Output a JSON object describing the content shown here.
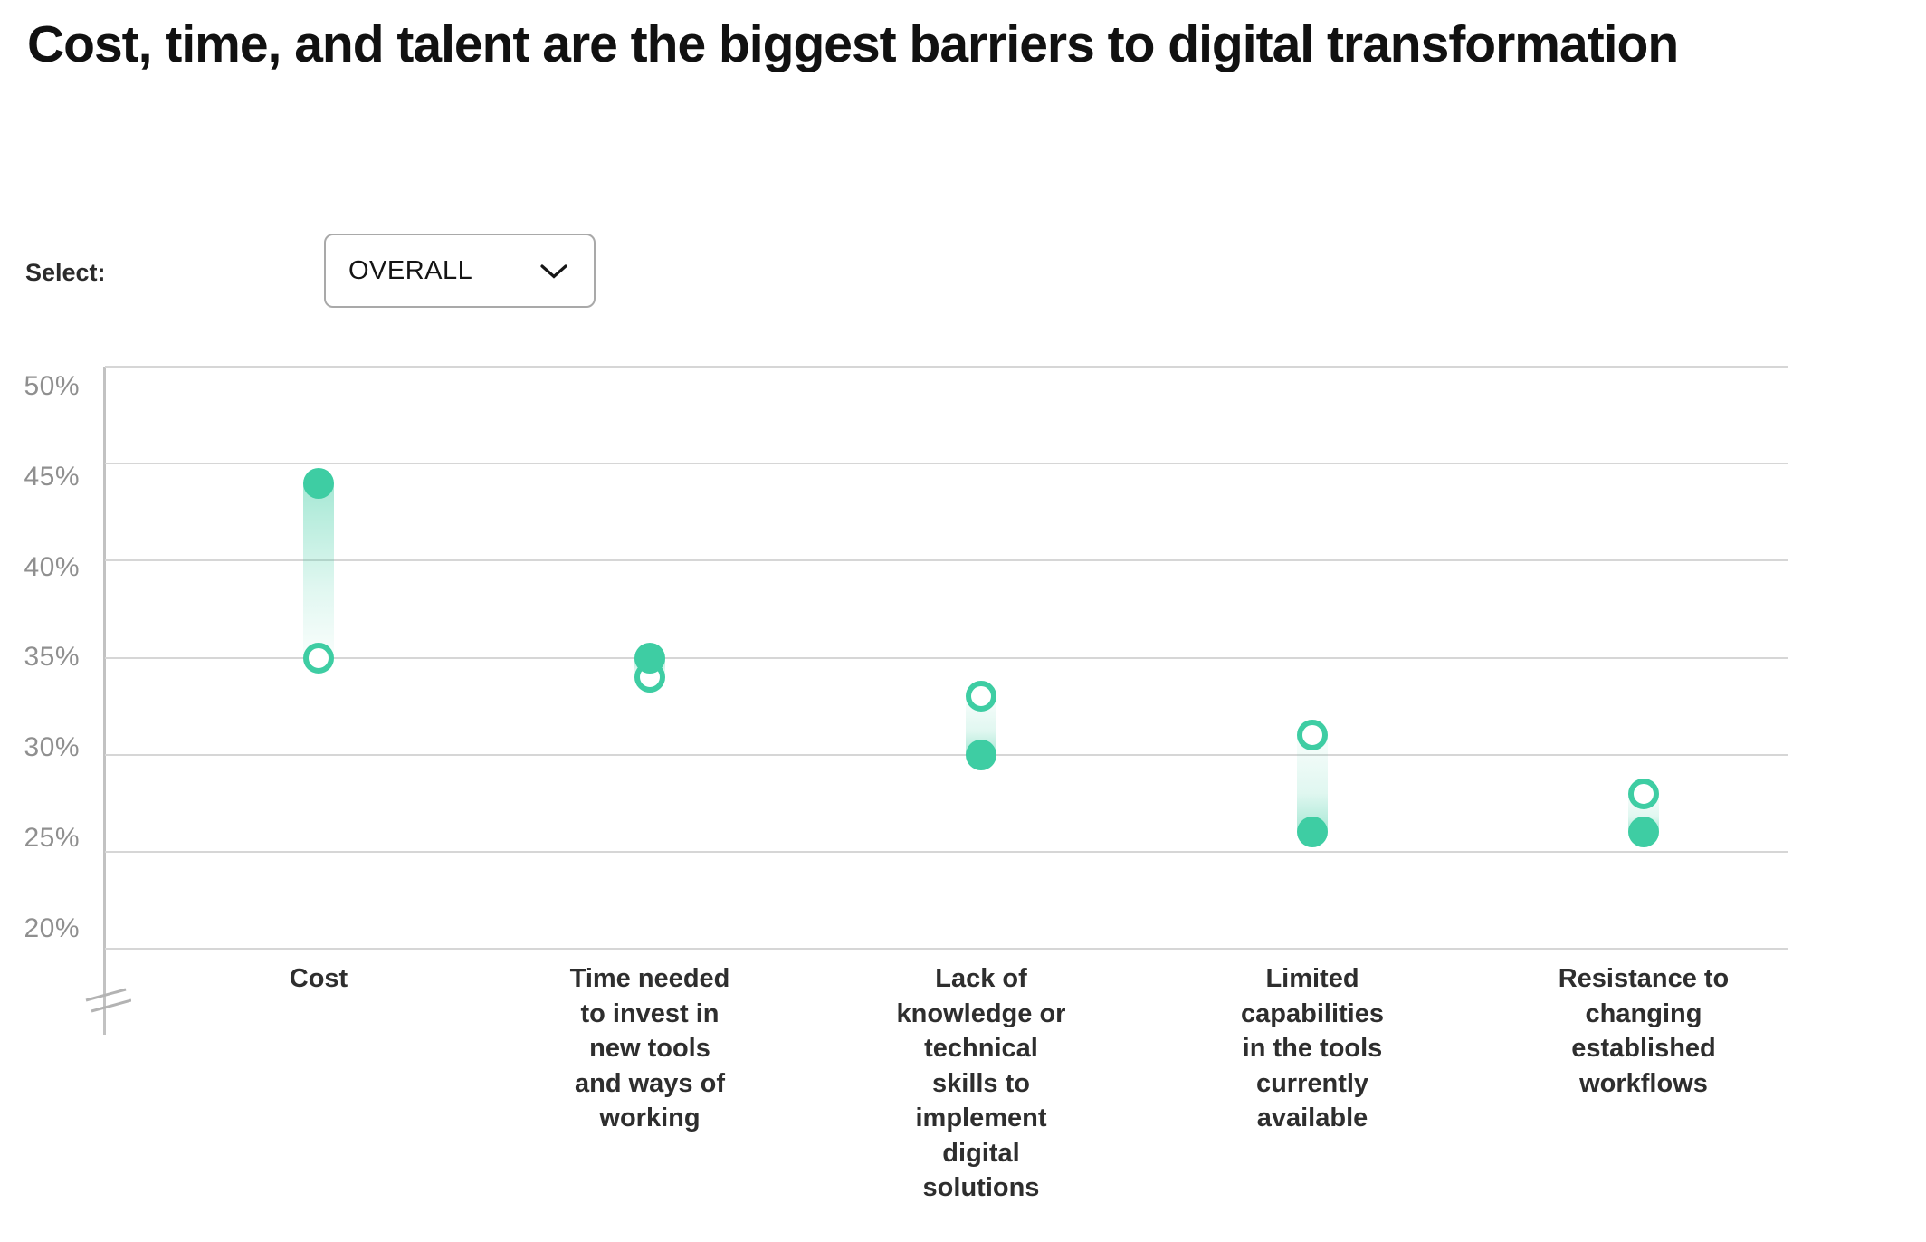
{
  "title": "Cost, time, and talent are the biggest barriers to digital transformation",
  "controls": {
    "select_label": "Select:",
    "dropdown_value": "OVERALL",
    "dropdown_icon": "chevron-down-icon"
  },
  "colors": {
    "accent": "#3ecda3",
    "band_strong": "rgba(62,205,163,0.46)",
    "band_mid": "rgba(62,205,163,0.16)",
    "band_faint": "rgba(62,205,163,0.03)",
    "gridline": "#d6d6d6",
    "axis_line": "#c2c2c2",
    "axis_break": "#b3b3b3",
    "tick_text": "#8f8f8f",
    "category_text": "#2e2e2e",
    "title_text": "#111111"
  },
  "chart_data": {
    "type": "scatter",
    "subtype": "dumbbell-range",
    "title": "Cost, time, and talent are the biggest barriers to digital transformation",
    "categories": [
      "Cost",
      "Time needed to invest in new tools and ways of working",
      "Lack of knowledge or technical skills to implement digital solutions",
      "Limited capabilities in the tools currently available",
      "Resistance to changing established workflows"
    ],
    "category_lines": [
      [
        "Cost"
      ],
      [
        "Time needed",
        "to invest in",
        "new tools",
        "and ways of",
        "working"
      ],
      [
        "Lack of",
        "knowledge or",
        "technical",
        "skills to",
        "implement",
        "digital",
        "solutions"
      ],
      [
        "Limited",
        "capabilities",
        "in the tools",
        "currently",
        "available"
      ],
      [
        "Resistance to",
        "changing",
        "established",
        "workflows"
      ]
    ],
    "series": [
      {
        "name": "filled-dot",
        "marker": "filled",
        "values": [
          44,
          35,
          30,
          26,
          26
        ]
      },
      {
        "name": "open-dot",
        "marker": "open",
        "values": [
          35,
          34,
          33,
          31,
          28
        ]
      }
    ],
    "yticks": [
      50,
      45,
      40,
      35,
      30,
      25,
      20
    ],
    "ytick_suffix": "%",
    "ylim": [
      20,
      50
    ],
    "xlabel": "",
    "ylabel": "",
    "grid": true,
    "legend": false,
    "axis_break": true
  }
}
